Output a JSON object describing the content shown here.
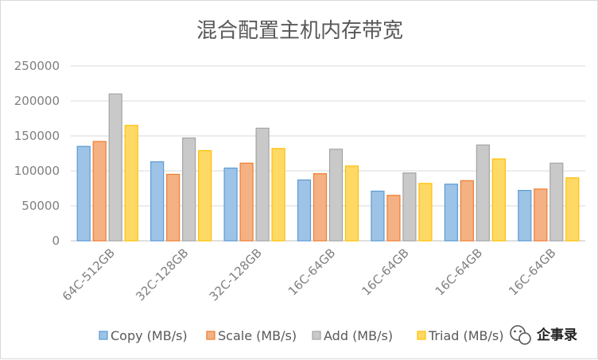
{
  "chart_data": {
    "type": "bar",
    "title": "混合配置主机内存带宽",
    "xlabel": "",
    "ylabel": "",
    "ylim": [
      0,
      250000
    ],
    "yticks": [
      "250000",
      "200000",
      "150000",
      "100000",
      "50000",
      "0"
    ],
    "grid": true,
    "legend_position": "bottom",
    "categories": [
      "64C-512GB",
      "32C-128GB",
      "32C-128GB",
      "16C-64GB",
      "16C-64GB",
      "16C-64GB",
      "16C-64GB"
    ],
    "series": [
      {
        "name": "Copy (MB/s)",
        "color": "#9dc3e6",
        "stroke": "#5b9bd5",
        "values": [
          135000,
          113000,
          104000,
          87000,
          71000,
          81000,
          72000
        ]
      },
      {
        "name": "Scale (MB/s)",
        "color": "#f4b183",
        "stroke": "#ed7d31",
        "values": [
          142000,
          95000,
          111000,
          96000,
          65000,
          86000,
          74000
        ]
      },
      {
        "name": "Add (MB/s)",
        "color": "#c9c9c9",
        "stroke": "#a5a5a5",
        "values": [
          210000,
          147000,
          161000,
          131000,
          97000,
          137000,
          111000
        ]
      },
      {
        "name": "Triad (MB/s)",
        "color": "#ffd966",
        "stroke": "#ffc000",
        "values": [
          165000,
          129000,
          132000,
          107000,
          82000,
          117000,
          90000
        ]
      }
    ]
  },
  "watermark": {
    "icon": "wechat-icon",
    "text": "企事录"
  }
}
